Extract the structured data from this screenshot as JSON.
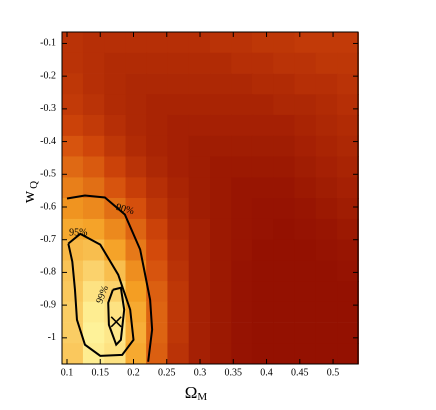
{
  "chart_data": {
    "type": "heatmap-contour",
    "xlabel": "Ω",
    "xlabel_sub": "M",
    "ylabel": "w",
    "ylabel_sub": "Q",
    "xlim": [
      0.0925,
      0.5375
    ],
    "ylim": [
      -1.08,
      -0.065
    ],
    "xticks": [
      0.1,
      0.15,
      0.2,
      0.25,
      0.3,
      0.35,
      0.4,
      0.45,
      0.5
    ],
    "yticks": [
      -0.1,
      -0.2,
      -0.3,
      -0.4,
      -0.5,
      -0.6,
      -0.7,
      -0.8,
      -0.9,
      -1
    ],
    "colormap": [
      "#8b0a00",
      "#d2480a",
      "#f5a024",
      "#fff7a0"
    ],
    "x": [
      0.108,
      0.14,
      0.172,
      0.204,
      0.235,
      0.267,
      0.299,
      0.331,
      0.363,
      0.394,
      0.426,
      0.458,
      0.49,
      0.522
    ],
    "y": [
      -0.097,
      -0.16,
      -0.224,
      -0.287,
      -0.35,
      -0.414,
      -0.477,
      -0.541,
      -0.604,
      -0.668,
      -0.731,
      -0.795,
      -0.858,
      -0.921,
      -0.985,
      -1.048
    ],
    "z": [
      [
        0.22,
        0.2,
        0.2,
        0.2,
        0.2,
        0.2,
        0.2,
        0.22,
        0.22,
        0.24,
        0.24,
        0.26,
        0.26,
        0.26
      ],
      [
        0.22,
        0.2,
        0.18,
        0.18,
        0.18,
        0.18,
        0.18,
        0.18,
        0.2,
        0.2,
        0.22,
        0.22,
        0.24,
        0.24
      ],
      [
        0.24,
        0.2,
        0.18,
        0.16,
        0.16,
        0.16,
        0.16,
        0.16,
        0.16,
        0.18,
        0.18,
        0.2,
        0.2,
        0.22
      ],
      [
        0.26,
        0.22,
        0.18,
        0.16,
        0.14,
        0.14,
        0.14,
        0.14,
        0.14,
        0.14,
        0.16,
        0.16,
        0.18,
        0.2
      ],
      [
        0.3,
        0.26,
        0.2,
        0.16,
        0.14,
        0.12,
        0.12,
        0.12,
        0.12,
        0.12,
        0.12,
        0.14,
        0.16,
        0.18
      ],
      [
        0.38,
        0.32,
        0.24,
        0.18,
        0.14,
        0.12,
        0.1,
        0.1,
        0.1,
        0.1,
        0.1,
        0.12,
        0.14,
        0.16
      ],
      [
        0.46,
        0.4,
        0.3,
        0.22,
        0.16,
        0.12,
        0.1,
        0.08,
        0.08,
        0.08,
        0.08,
        0.1,
        0.12,
        0.14
      ],
      [
        0.54,
        0.48,
        0.38,
        0.28,
        0.2,
        0.14,
        0.1,
        0.08,
        0.06,
        0.06,
        0.06,
        0.08,
        0.1,
        0.12
      ],
      [
        0.62,
        0.58,
        0.48,
        0.36,
        0.24,
        0.16,
        0.1,
        0.08,
        0.06,
        0.05,
        0.05,
        0.06,
        0.08,
        0.1
      ],
      [
        0.7,
        0.68,
        0.58,
        0.44,
        0.3,
        0.18,
        0.12,
        0.08,
        0.06,
        0.05,
        0.04,
        0.05,
        0.06,
        0.08
      ],
      [
        0.76,
        0.78,
        0.68,
        0.52,
        0.34,
        0.2,
        0.12,
        0.08,
        0.06,
        0.04,
        0.04,
        0.04,
        0.05,
        0.06
      ],
      [
        0.8,
        0.86,
        0.78,
        0.6,
        0.38,
        0.22,
        0.12,
        0.08,
        0.05,
        0.04,
        0.04,
        0.04,
        0.04,
        0.05
      ],
      [
        0.82,
        0.92,
        0.86,
        0.66,
        0.42,
        0.24,
        0.12,
        0.08,
        0.05,
        0.04,
        0.04,
        0.04,
        0.04,
        0.04
      ],
      [
        0.84,
        0.96,
        0.92,
        0.7,
        0.44,
        0.24,
        0.12,
        0.08,
        0.05,
        0.04,
        0.04,
        0.04,
        0.04,
        0.04
      ],
      [
        0.84,
        0.98,
        0.94,
        0.72,
        0.44,
        0.24,
        0.12,
        0.08,
        0.05,
        0.04,
        0.04,
        0.04,
        0.04,
        0.04
      ],
      [
        0.82,
        0.96,
        0.92,
        0.7,
        0.42,
        0.22,
        0.12,
        0.08,
        0.05,
        0.04,
        0.04,
        0.04,
        0.04,
        0.04
      ]
    ],
    "contour_color": "#000000",
    "contours": [
      {
        "name": "90%",
        "x": [
          0.1,
          0.127,
          0.157,
          0.187,
          0.21,
          0.225,
          0.228,
          0.222
        ],
        "y": [
          -0.574,
          -0.565,
          -0.571,
          -0.623,
          -0.73,
          -0.884,
          -0.975,
          -1.073
        ]
      },
      {
        "name": "95%",
        "x": [
          0.102,
          0.12,
          0.15,
          0.177,
          0.195,
          0.2,
          0.183,
          0.15,
          0.127,
          0.115,
          0.112,
          0.108,
          0.102
        ],
        "y": [
          -0.712,
          -0.682,
          -0.715,
          -0.807,
          -0.914,
          -1.006,
          -1.052,
          -1.055,
          -1.021,
          -0.945,
          -0.853,
          -0.767,
          -0.712
        ]
      },
      {
        "name": "99%",
        "x": [
          0.169,
          0.181,
          0.186,
          0.181,
          0.174,
          0.163,
          0.162,
          0.169
        ],
        "y": [
          -0.853,
          -0.847,
          -0.914,
          -1.006,
          -1.021,
          -0.96,
          -0.893,
          -0.853
        ]
      }
    ],
    "best_fit": {
      "x": 0.174,
      "y": -0.951
    }
  }
}
